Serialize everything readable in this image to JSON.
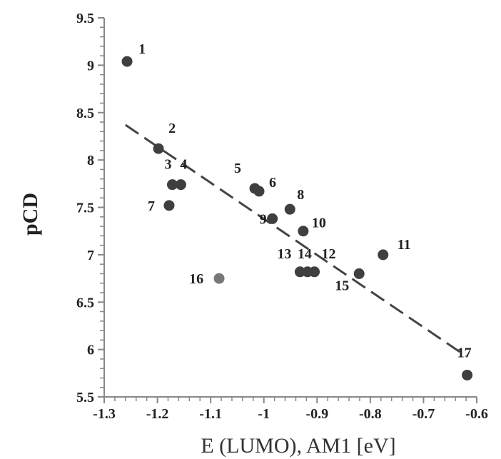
{
  "chart_data": {
    "type": "scatter",
    "xlabel": "E (LUMO), AM1 [eV]",
    "ylabel": "pCD",
    "xlim": [
      -1.3,
      -0.6
    ],
    "ylim": [
      5.5,
      9.5
    ],
    "x_ticks": [
      -1.3,
      -1.2,
      -1.1,
      -1,
      -0.9,
      -0.8,
      -0.7,
      -0.6
    ],
    "y_ticks": [
      5.5,
      6,
      6.5,
      7,
      7.5,
      8,
      8.5,
      9,
      9.5
    ],
    "x_tick_labels": [
      "-1.3",
      "-1.2",
      "-1.1",
      "-1",
      "-0.9",
      "-0.8",
      "-0.7",
      "-0.6"
    ],
    "y_tick_labels": [
      "5.5",
      "6",
      "6.5",
      "7",
      "7.5",
      "8",
      "8.5",
      "9",
      "9.5"
    ],
    "grid": false,
    "points": [
      {
        "label": "1",
        "x": -1.257,
        "y": 9.04,
        "color": "#3f3f3f"
      },
      {
        "label": "2",
        "x": -1.198,
        "y": 8.12,
        "color": "#3f3f3f"
      },
      {
        "label": "3",
        "x": -1.172,
        "y": 7.74,
        "color": "#3f3f3f"
      },
      {
        "label": "4",
        "x": -1.156,
        "y": 7.74,
        "color": "#3f3f3f"
      },
      {
        "label": "5",
        "x": -1.017,
        "y": 7.7,
        "color": "#3f3f3f"
      },
      {
        "label": "6",
        "x": -1.009,
        "y": 7.67,
        "color": "#3f3f3f"
      },
      {
        "label": "7",
        "x": -1.178,
        "y": 7.52,
        "color": "#3f3f3f"
      },
      {
        "label": "8",
        "x": -0.951,
        "y": 7.48,
        "color": "#3f3f3f"
      },
      {
        "label": "9",
        "x": -0.984,
        "y": 7.38,
        "color": "#3f3f3f"
      },
      {
        "label": "10",
        "x": -0.926,
        "y": 7.25,
        "color": "#3f3f3f"
      },
      {
        "label": "11",
        "x": -0.776,
        "y": 7.0,
        "color": "#3f3f3f"
      },
      {
        "label": "12",
        "x": -0.905,
        "y": 6.82,
        "color": "#3f3f3f"
      },
      {
        "label": "13",
        "x": -0.932,
        "y": 6.82,
        "color": "#3f3f3f"
      },
      {
        "label": "14",
        "x": -0.918,
        "y": 6.82,
        "color": "#3f3f3f"
      },
      {
        "label": "15",
        "x": -0.821,
        "y": 6.8,
        "color": "#3f3f3f"
      },
      {
        "label": "16",
        "x": -1.084,
        "y": 6.75,
        "color": "#777777"
      },
      {
        "label": "17",
        "x": -0.618,
        "y": 5.73,
        "color": "#3f3f3f"
      }
    ],
    "trendline": {
      "style": "dashed",
      "color": "#444444",
      "x": [
        -1.26,
        -0.62
      ],
      "y": [
        8.37,
        5.93
      ]
    }
  }
}
